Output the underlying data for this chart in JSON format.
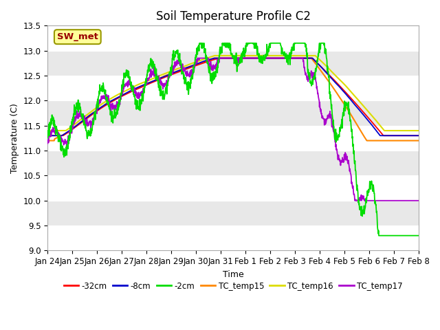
{
  "title": "Soil Temperature Profile C2",
  "xlabel": "Time",
  "ylabel": "Temperature (C)",
  "ylim": [
    9.0,
    13.5
  ],
  "yticks": [
    9.0,
    9.5,
    10.0,
    10.5,
    11.0,
    11.5,
    12.0,
    12.5,
    13.0,
    13.5
  ],
  "xtick_labels": [
    "Jan 24",
    "Jan 25",
    "Jan 26",
    "Jan 27",
    "Jan 28",
    "Jan 29",
    "Jan 30",
    "Jan 31",
    "Feb 1",
    "Feb 2",
    "Feb 3",
    "Feb 4",
    "Feb 5",
    "Feb 6",
    "Feb 7",
    "Feb 8"
  ],
  "n_points": 1440,
  "colors": {
    "-32cm": "#ff0000",
    "-8cm": "#0000cc",
    "-2cm": "#00dd00",
    "TC_temp15": "#ff8800",
    "TC_temp16": "#dddd00",
    "TC_temp17": "#aa00cc"
  },
  "legend_box_color": "#ffff99",
  "legend_box_edge": "#999900",
  "legend_text": "SW_met",
  "legend_text_color": "#990000",
  "bg_color": "#ffffff",
  "plot_bg_color": "#e8e8e8",
  "grid_color": "#ffffff",
  "title_fontsize": 12,
  "axis_fontsize": 9,
  "tick_fontsize": 8.5
}
